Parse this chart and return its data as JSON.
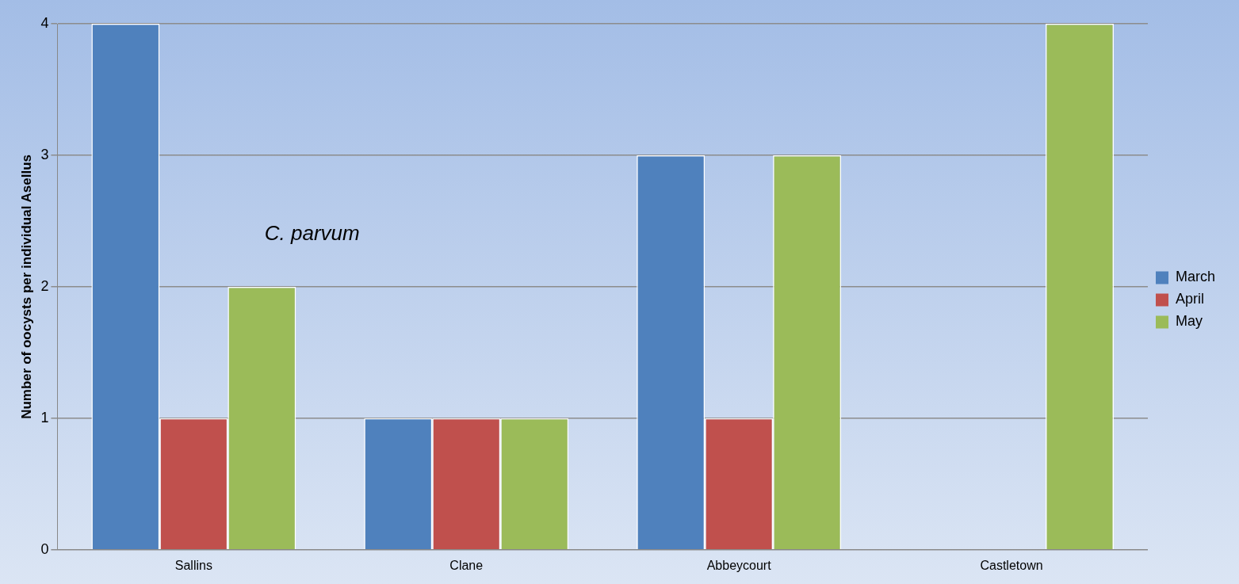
{
  "chart_data": {
    "type": "bar",
    "ylabel": "Number of oocysts per individual $_{}$Asellus",
    "categories": [
      "Sallins",
      "Clane",
      "Abbeycourt",
      "Castletown"
    ],
    "series": [
      {
        "name": "March",
        "color": "#4f81bd",
        "values": [
          4,
          1,
          3,
          0
        ]
      },
      {
        "name": "April",
        "color": "#c0504d",
        "values": [
          1,
          1,
          1,
          0
        ]
      },
      {
        "name": "May",
        "color": "#9bbb59",
        "values": [
          2,
          1,
          3,
          4
        ]
      }
    ],
    "ylim": [
      0,
      4
    ],
    "yticks": [
      0,
      1,
      2,
      3,
      4
    ],
    "grid": "y",
    "legend": "right",
    "annotations": [
      "C. parvum"
    ]
  }
}
